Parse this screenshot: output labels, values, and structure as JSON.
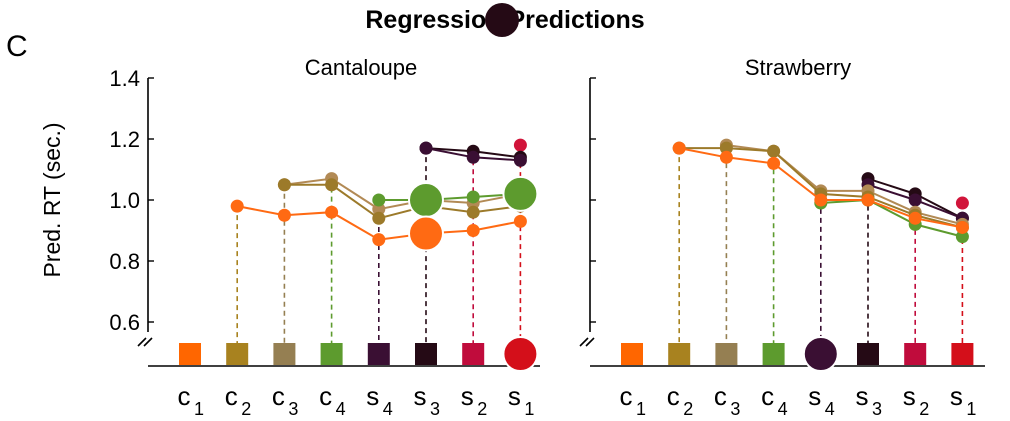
{
  "figure": {
    "title": "Regression Predictions",
    "panel_letter": "C"
  },
  "chart_data": [
    {
      "type": "line",
      "title": "Cantaloupe",
      "ylabel": "Pred. RT (sec.)",
      "ylim": [
        0.6,
        1.4
      ],
      "yticks": [
        "0.6",
        "0.8",
        "1.0",
        "1.2",
        "1.4"
      ],
      "axis_break": true,
      "grid": false,
      "categories": [
        {
          "base": "c",
          "sub": "1"
        },
        {
          "base": "c",
          "sub": "2"
        },
        {
          "base": "c",
          "sub": "3"
        },
        {
          "base": "c",
          "sub": "4"
        },
        {
          "base": "s",
          "sub": "4"
        },
        {
          "base": "s",
          "sub": "3"
        },
        {
          "base": "s",
          "sub": "2"
        },
        {
          "base": "s",
          "sub": "1"
        }
      ],
      "category_colors": [
        "#ff6600",
        "#a8821f",
        "#957f52",
        "#5d9b2e",
        "#3a0f33",
        "#250a15",
        "#c00c3c",
        "#d40f1a"
      ],
      "highlight_category_index": 7,
      "series": [
        {
          "color": "#d1143a",
          "values": [
            null,
            null,
            null,
            null,
            null,
            null,
            null,
            1.18
          ],
          "large_index": null
        },
        {
          "color": "#250a15",
          "values": [
            null,
            null,
            null,
            null,
            null,
            1.17,
            1.16,
            1.14
          ],
          "large_index": null
        },
        {
          "color": "#3a0f33",
          "values": [
            null,
            null,
            null,
            null,
            null,
            1.17,
            1.14,
            1.13
          ],
          "large_index": null
        },
        {
          "color": "#b28a55",
          "values": [
            null,
            null,
            1.05,
            1.07,
            0.97,
            1.0,
            0.99,
            1.02
          ],
          "large_index": null
        },
        {
          "color": "#9c7a2a",
          "values": [
            null,
            null,
            1.05,
            1.05,
            0.94,
            0.98,
            0.96,
            0.98
          ],
          "large_index": null
        },
        {
          "color": "#5d9b2e",
          "values": [
            null,
            null,
            null,
            null,
            1.0,
            1.0,
            1.01,
            1.02
          ],
          "large_index": 5
        },
        {
          "color": "#5d9b2e",
          "values": [
            null,
            null,
            null,
            null,
            null,
            null,
            null,
            1.02
          ],
          "large_index": 7
        },
        {
          "color": "#ff6a13",
          "values": [
            null,
            0.98,
            0.95,
            0.96,
            0.87,
            0.89,
            0.9,
            0.93
          ],
          "large_index": 5
        }
      ],
      "drop_line_values": [
        null,
        0.98,
        1.05,
        1.07,
        1.0,
        1.17,
        1.16,
        1.18
      ]
    },
    {
      "type": "line",
      "title": "Strawberry",
      "ylim": [
        0.6,
        1.4
      ],
      "yticks": [
        "0.6",
        "0.8",
        "1.0",
        "1.2",
        "1.4"
      ],
      "show_tick_labels": false,
      "axis_break": true,
      "grid": false,
      "categories": [
        {
          "base": "c",
          "sub": "1"
        },
        {
          "base": "c",
          "sub": "2"
        },
        {
          "base": "c",
          "sub": "3"
        },
        {
          "base": "c",
          "sub": "4"
        },
        {
          "base": "s",
          "sub": "4"
        },
        {
          "base": "s",
          "sub": "3"
        },
        {
          "base": "s",
          "sub": "2"
        },
        {
          "base": "s",
          "sub": "1"
        }
      ],
      "category_colors": [
        "#ff6600",
        "#a8821f",
        "#957f52",
        "#5d9b2e",
        "#3a0f33",
        "#250a15",
        "#c00c3c",
        "#d40f1a"
      ],
      "highlight_category_index": 4,
      "series": [
        {
          "color": "#d1143a",
          "values": [
            null,
            null,
            null,
            null,
            null,
            null,
            null,
            0.99
          ],
          "large_index": null
        },
        {
          "color": "#250a15",
          "values": [
            null,
            null,
            null,
            null,
            null,
            1.07,
            1.02,
            0.94
          ],
          "large_index": null
        },
        {
          "color": "#3a0f33",
          "values": [
            null,
            null,
            null,
            null,
            null,
            1.05,
            1.0,
            0.94
          ],
          "large_index": null
        },
        {
          "color": "#b28a55",
          "values": [
            null,
            null,
            1.18,
            1.16,
            1.03,
            1.03,
            0.96,
            0.92
          ],
          "large_index": null
        },
        {
          "color": "#9c7a2a",
          "values": [
            null,
            1.17,
            1.17,
            1.16,
            1.02,
            1.01,
            0.95,
            0.91
          ],
          "large_index": null
        },
        {
          "color": "#5d9b2e",
          "values": [
            null,
            null,
            null,
            null,
            0.99,
            1.0,
            0.92,
            0.88
          ],
          "large_index": null
        },
        {
          "color": "#ff6a13",
          "values": [
            null,
            1.17,
            1.14,
            1.12,
            1.0,
            1.0,
            0.94,
            0.91
          ],
          "large_index": null
        }
      ],
      "drop_line_values": [
        null,
        1.17,
        1.18,
        1.16,
        1.03,
        1.07,
        1.02,
        0.99
      ]
    }
  ]
}
